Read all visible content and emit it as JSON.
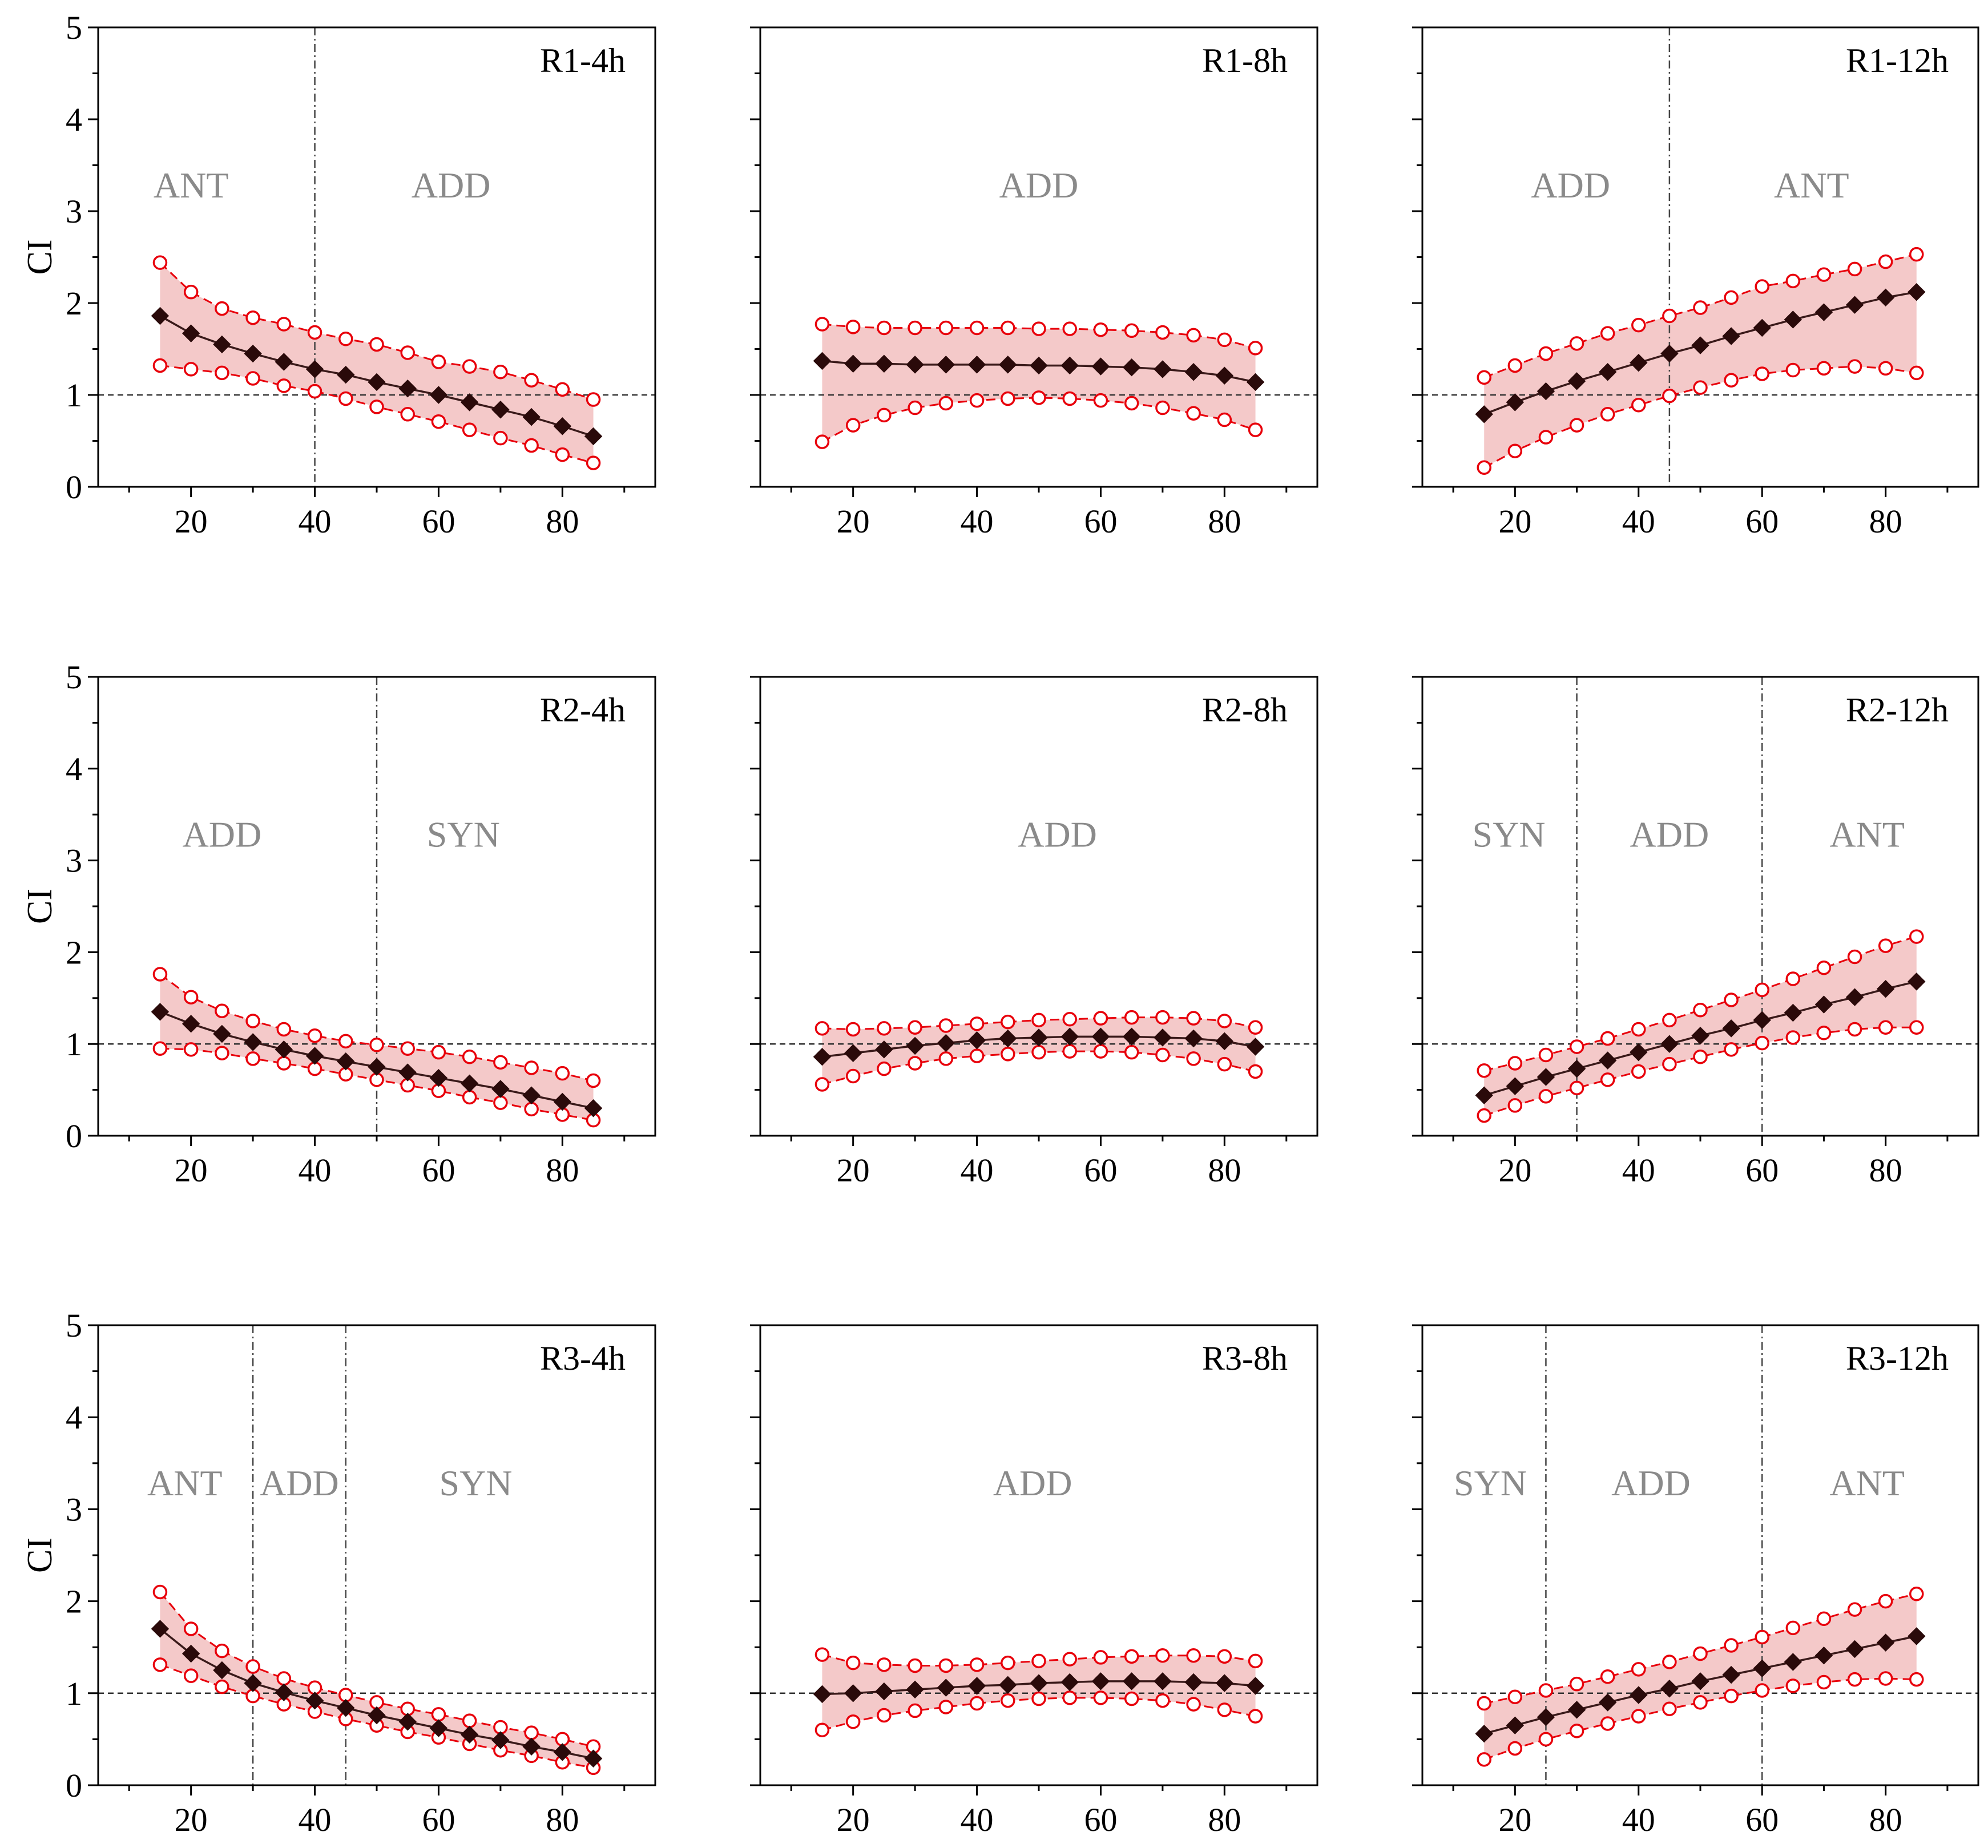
{
  "colors": {
    "mean": "#2a0a0a",
    "bound": "#e8000b",
    "band": "#f4c9c9",
    "region_text": "#8a8a8a",
    "ref_line": "#333333"
  },
  "chart_data": [
    {
      "type": "line",
      "title": "R1-4h",
      "ylabel": "CI",
      "xlim": [
        5,
        95
      ],
      "ylim": [
        0,
        5
      ],
      "xticks": [
        "20",
        "40",
        "60",
        "80"
      ],
      "yticks": [
        "0",
        "1",
        "2",
        "3",
        "4",
        "5"
      ],
      "reference_y": 1,
      "dividers_x": [
        40
      ],
      "regions": [
        {
          "label": "ANT",
          "x": 20
        },
        {
          "label": "ADD",
          "x": 62
        }
      ],
      "x": [
        15,
        20,
        25,
        30,
        35,
        40,
        45,
        50,
        55,
        60,
        65,
        70,
        75,
        80,
        85
      ],
      "series": [
        {
          "name": "upper",
          "values": [
            2.44,
            2.12,
            1.94,
            1.84,
            1.77,
            1.68,
            1.61,
            1.55,
            1.46,
            1.36,
            1.31,
            1.25,
            1.16,
            1.06,
            0.95
          ]
        },
        {
          "name": "mean",
          "values": [
            1.86,
            1.67,
            1.55,
            1.45,
            1.36,
            1.28,
            1.22,
            1.14,
            1.07,
            1.0,
            0.92,
            0.84,
            0.76,
            0.66,
            0.55
          ]
        },
        {
          "name": "lower",
          "values": [
            1.32,
            1.28,
            1.24,
            1.18,
            1.1,
            1.04,
            0.96,
            0.87,
            0.79,
            0.71,
            0.62,
            0.53,
            0.45,
            0.35,
            0.26
          ]
        }
      ]
    },
    {
      "type": "line",
      "title": "R1-8h",
      "ylabel": "",
      "xlim": [
        5,
        95
      ],
      "ylim": [
        0,
        5
      ],
      "xticks": [
        "20",
        "40",
        "60",
        "80"
      ],
      "yticks": [],
      "reference_y": 1,
      "dividers_x": [],
      "regions": [
        {
          "label": "ADD",
          "x": 50
        }
      ],
      "x": [
        15,
        20,
        25,
        30,
        35,
        40,
        45,
        50,
        55,
        60,
        65,
        70,
        75,
        80,
        85
      ],
      "series": [
        {
          "name": "upper",
          "values": [
            1.77,
            1.74,
            1.73,
            1.73,
            1.73,
            1.73,
            1.73,
            1.72,
            1.72,
            1.71,
            1.7,
            1.68,
            1.65,
            1.6,
            1.51
          ]
        },
        {
          "name": "mean",
          "values": [
            1.37,
            1.34,
            1.34,
            1.33,
            1.33,
            1.33,
            1.33,
            1.32,
            1.32,
            1.31,
            1.3,
            1.28,
            1.25,
            1.21,
            1.14
          ]
        },
        {
          "name": "lower",
          "values": [
            0.49,
            0.67,
            0.78,
            0.86,
            0.91,
            0.94,
            0.96,
            0.97,
            0.96,
            0.94,
            0.91,
            0.86,
            0.8,
            0.73,
            0.62
          ]
        }
      ]
    },
    {
      "type": "line",
      "title": "R1-12h",
      "ylabel": "",
      "xlim": [
        5,
        95
      ],
      "ylim": [
        0,
        5
      ],
      "xticks": [
        "20",
        "40",
        "60",
        "80"
      ],
      "yticks": [],
      "reference_y": 1,
      "dividers_x": [
        45
      ],
      "regions": [
        {
          "label": "ADD",
          "x": 29
        },
        {
          "label": "ANT",
          "x": 68
        }
      ],
      "x": [
        15,
        20,
        25,
        30,
        35,
        40,
        45,
        50,
        55,
        60,
        65,
        70,
        75,
        80,
        85
      ],
      "series": [
        {
          "name": "upper",
          "values": [
            1.19,
            1.32,
            1.45,
            1.56,
            1.67,
            1.76,
            1.86,
            1.95,
            2.06,
            2.18,
            2.24,
            2.31,
            2.37,
            2.45,
            2.53
          ]
        },
        {
          "name": "mean",
          "values": [
            0.79,
            0.92,
            1.04,
            1.15,
            1.25,
            1.35,
            1.45,
            1.54,
            1.64,
            1.73,
            1.82,
            1.9,
            1.98,
            2.06,
            2.12
          ]
        },
        {
          "name": "lower",
          "values": [
            0.21,
            0.39,
            0.54,
            0.67,
            0.79,
            0.89,
            0.99,
            1.08,
            1.16,
            1.23,
            1.27,
            1.29,
            1.31,
            1.29,
            1.24
          ]
        }
      ]
    },
    {
      "type": "line",
      "title": "R2-4h",
      "ylabel": "CI",
      "xlim": [
        5,
        95
      ],
      "ylim": [
        0,
        5
      ],
      "xticks": [
        "20",
        "40",
        "60",
        "80"
      ],
      "yticks": [
        "0",
        "1",
        "2",
        "3",
        "4",
        "5"
      ],
      "reference_y": 1,
      "dividers_x": [
        50
      ],
      "regions": [
        {
          "label": "ADD",
          "x": 25
        },
        {
          "label": "SYN",
          "x": 64
        }
      ],
      "x": [
        15,
        20,
        25,
        30,
        35,
        40,
        45,
        50,
        55,
        60,
        65,
        70,
        75,
        80,
        85
      ],
      "series": [
        {
          "name": "upper",
          "values": [
            1.76,
            1.51,
            1.36,
            1.25,
            1.16,
            1.09,
            1.03,
            0.99,
            0.95,
            0.91,
            0.86,
            0.8,
            0.74,
            0.68,
            0.6
          ]
        },
        {
          "name": "mean",
          "values": [
            1.35,
            1.22,
            1.11,
            1.02,
            0.94,
            0.87,
            0.81,
            0.75,
            0.69,
            0.63,
            0.57,
            0.51,
            0.44,
            0.37,
            0.3
          ]
        },
        {
          "name": "lower",
          "values": [
            0.95,
            0.94,
            0.9,
            0.84,
            0.79,
            0.73,
            0.67,
            0.61,
            0.55,
            0.49,
            0.42,
            0.36,
            0.29,
            0.23,
            0.17
          ]
        }
      ]
    },
    {
      "type": "line",
      "title": "R2-8h",
      "ylabel": "",
      "xlim": [
        5,
        95
      ],
      "ylim": [
        0,
        5
      ],
      "xticks": [
        "20",
        "40",
        "60",
        "80"
      ],
      "yticks": [],
      "reference_y": 1,
      "dividers_x": [],
      "regions": [
        {
          "label": "ADD",
          "x": 53
        }
      ],
      "x": [
        15,
        20,
        25,
        30,
        35,
        40,
        45,
        50,
        55,
        60,
        65,
        70,
        75,
        80,
        85
      ],
      "series": [
        {
          "name": "upper",
          "values": [
            1.17,
            1.16,
            1.17,
            1.18,
            1.2,
            1.22,
            1.24,
            1.26,
            1.27,
            1.28,
            1.29,
            1.29,
            1.28,
            1.25,
            1.18
          ]
        },
        {
          "name": "mean",
          "values": [
            0.86,
            0.9,
            0.94,
            0.98,
            1.01,
            1.04,
            1.06,
            1.07,
            1.08,
            1.08,
            1.08,
            1.07,
            1.06,
            1.03,
            0.97
          ]
        },
        {
          "name": "lower",
          "values": [
            0.56,
            0.65,
            0.73,
            0.79,
            0.84,
            0.87,
            0.89,
            0.91,
            0.92,
            0.92,
            0.91,
            0.88,
            0.84,
            0.78,
            0.7
          ]
        }
      ]
    },
    {
      "type": "line",
      "title": "R2-12h",
      "ylabel": "",
      "xlim": [
        5,
        95
      ],
      "ylim": [
        0,
        5
      ],
      "xticks": [
        "20",
        "40",
        "60",
        "80"
      ],
      "yticks": [],
      "reference_y": 1,
      "dividers_x": [
        30,
        60
      ],
      "regions": [
        {
          "label": "SYN",
          "x": 19
        },
        {
          "label": "ADD",
          "x": 45
        },
        {
          "label": "ANT",
          "x": 77
        }
      ],
      "x": [
        15,
        20,
        25,
        30,
        35,
        40,
        45,
        50,
        55,
        60,
        65,
        70,
        75,
        80,
        85
      ],
      "series": [
        {
          "name": "upper",
          "values": [
            0.71,
            0.79,
            0.88,
            0.97,
            1.06,
            1.16,
            1.26,
            1.37,
            1.48,
            1.59,
            1.71,
            1.83,
            1.95,
            2.07,
            2.17
          ]
        },
        {
          "name": "mean",
          "values": [
            0.44,
            0.54,
            0.64,
            0.73,
            0.82,
            0.91,
            1.0,
            1.09,
            1.17,
            1.26,
            1.34,
            1.43,
            1.51,
            1.6,
            1.68
          ]
        },
        {
          "name": "lower",
          "values": [
            0.22,
            0.33,
            0.43,
            0.52,
            0.61,
            0.7,
            0.78,
            0.86,
            0.94,
            1.01,
            1.07,
            1.12,
            1.16,
            1.18,
            1.18
          ]
        }
      ]
    },
    {
      "type": "line",
      "title": "R3-4h",
      "ylabel": "CI",
      "xlim": [
        5,
        95
      ],
      "ylim": [
        0,
        5
      ],
      "xticks": [
        "20",
        "40",
        "60",
        "80"
      ],
      "yticks": [
        "0",
        "1",
        "2",
        "3",
        "4",
        "5"
      ],
      "reference_y": 1,
      "dividers_x": [
        30,
        45
      ],
      "regions": [
        {
          "label": "ANT",
          "x": 19
        },
        {
          "label": "ADD",
          "x": 37.5
        },
        {
          "label": "SYN",
          "x": 66
        }
      ],
      "x": [
        15,
        20,
        25,
        30,
        35,
        40,
        45,
        50,
        55,
        60,
        65,
        70,
        75,
        80,
        85
      ],
      "series": [
        {
          "name": "upper",
          "values": [
            2.1,
            1.7,
            1.46,
            1.29,
            1.16,
            1.06,
            0.98,
            0.9,
            0.83,
            0.77,
            0.7,
            0.63,
            0.57,
            0.5,
            0.42
          ]
        },
        {
          "name": "mean",
          "values": [
            1.7,
            1.43,
            1.25,
            1.11,
            1.01,
            0.92,
            0.84,
            0.76,
            0.69,
            0.62,
            0.55,
            0.49,
            0.42,
            0.36,
            0.29
          ]
        },
        {
          "name": "lower",
          "values": [
            1.31,
            1.19,
            1.07,
            0.97,
            0.88,
            0.8,
            0.72,
            0.65,
            0.58,
            0.52,
            0.45,
            0.38,
            0.32,
            0.25,
            0.19
          ]
        }
      ]
    },
    {
      "type": "line",
      "title": "R3-8h",
      "ylabel": "",
      "xlim": [
        5,
        95
      ],
      "ylim": [
        0,
        5
      ],
      "xticks": [
        "20",
        "40",
        "60",
        "80"
      ],
      "yticks": [],
      "reference_y": 1,
      "dividers_x": [],
      "regions": [
        {
          "label": "ADD",
          "x": 49
        }
      ],
      "x": [
        15,
        20,
        25,
        30,
        35,
        40,
        45,
        50,
        55,
        60,
        65,
        70,
        75,
        80,
        85
      ],
      "series": [
        {
          "name": "upper",
          "values": [
            1.42,
            1.33,
            1.31,
            1.3,
            1.3,
            1.31,
            1.33,
            1.35,
            1.37,
            1.39,
            1.4,
            1.41,
            1.41,
            1.4,
            1.35
          ]
        },
        {
          "name": "mean",
          "values": [
            0.99,
            1.0,
            1.02,
            1.04,
            1.06,
            1.08,
            1.09,
            1.11,
            1.12,
            1.13,
            1.13,
            1.13,
            1.12,
            1.11,
            1.08
          ]
        },
        {
          "name": "lower",
          "values": [
            0.6,
            0.69,
            0.76,
            0.81,
            0.85,
            0.89,
            0.92,
            0.94,
            0.95,
            0.95,
            0.94,
            0.92,
            0.88,
            0.82,
            0.75
          ]
        }
      ]
    },
    {
      "type": "line",
      "title": "R3-12h",
      "ylabel": "",
      "xlim": [
        5,
        95
      ],
      "ylim": [
        0,
        5
      ],
      "xticks": [
        "20",
        "40",
        "60",
        "80"
      ],
      "yticks": [],
      "reference_y": 1,
      "dividers_x": [
        25,
        60
      ],
      "regions": [
        {
          "label": "SYN",
          "x": 16
        },
        {
          "label": "ADD",
          "x": 42
        },
        {
          "label": "ANT",
          "x": 77
        }
      ],
      "x": [
        15,
        20,
        25,
        30,
        35,
        40,
        45,
        50,
        55,
        60,
        65,
        70,
        75,
        80,
        85
      ],
      "series": [
        {
          "name": "upper",
          "values": [
            0.89,
            0.96,
            1.03,
            1.1,
            1.18,
            1.26,
            1.34,
            1.43,
            1.52,
            1.61,
            1.71,
            1.81,
            1.91,
            2.0,
            2.08
          ]
        },
        {
          "name": "mean",
          "values": [
            0.56,
            0.65,
            0.74,
            0.82,
            0.9,
            0.98,
            1.05,
            1.13,
            1.2,
            1.27,
            1.34,
            1.41,
            1.48,
            1.55,
            1.62
          ]
        },
        {
          "name": "lower",
          "values": [
            0.28,
            0.4,
            0.5,
            0.59,
            0.67,
            0.75,
            0.83,
            0.9,
            0.97,
            1.03,
            1.08,
            1.12,
            1.15,
            1.16,
            1.15
          ]
        }
      ]
    }
  ]
}
